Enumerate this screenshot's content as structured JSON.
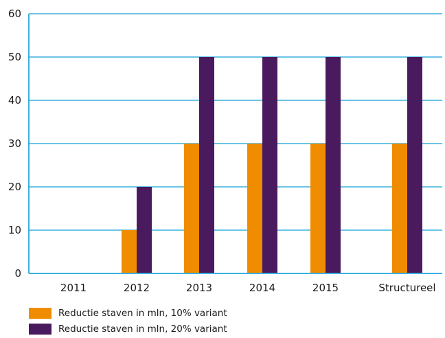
{
  "chart_data": {
    "type": "bar",
    "categories": [
      "2011",
      "2012",
      "2013",
      "2014",
      "2015",
      "Structureel"
    ],
    "series": [
      {
        "name": "Reductie staven in mln, 10% variant",
        "values": [
          0,
          10,
          30,
          30,
          30,
          30
        ],
        "color": "#f08c00"
      },
      {
        "name": "Reductie staven in mln, 20% variant",
        "values": [
          0,
          20,
          50,
          50,
          50,
          50
        ],
        "color": "#4a1a5e"
      }
    ],
    "y_ticks": [
      "0",
      "10",
      "20",
      "30",
      "40",
      "50",
      "60"
    ],
    "ylim": [
      0,
      60
    ],
    "grid": true,
    "grid_color": "#3ab0e0",
    "legend_position": "bottom-left"
  }
}
